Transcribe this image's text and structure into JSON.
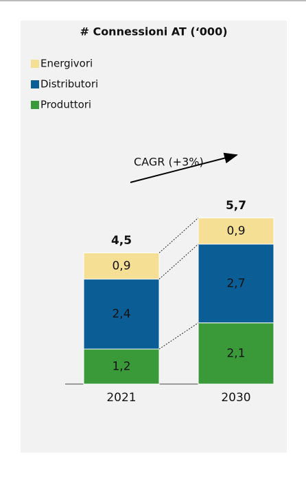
{
  "chart_data": {
    "type": "stacked_bar",
    "title": "# Connessioni AT (‘000)",
    "categories": [
      "2021",
      "2030"
    ],
    "series": [
      {
        "name": "Produttori",
        "color": "#3a9a3a",
        "values": [
          1.2,
          2.1
        ],
        "value_labels": [
          "1,2",
          "2,1"
        ]
      },
      {
        "name": "Distributori",
        "color": "#0b5d96",
        "values": [
          2.4,
          2.7
        ],
        "value_labels": [
          "2,4",
          "2,7"
        ]
      },
      {
        "name": "Energivori",
        "color": "#f5df94",
        "values": [
          0.9,
          0.9
        ],
        "value_labels": [
          "0,9",
          "0,9"
        ]
      }
    ],
    "totals": [
      4.5,
      5.7
    ],
    "total_labels": [
      "4,5",
      "5,7"
    ],
    "annotation": "CAGR (+3%)"
  }
}
